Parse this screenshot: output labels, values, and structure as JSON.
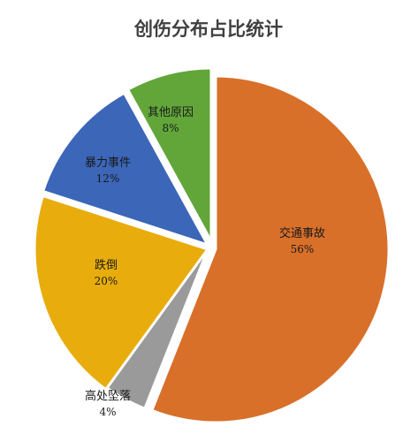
{
  "chart_data": {
    "type": "pie",
    "title": "创伤分布占比统计",
    "slices": [
      {
        "name": "交通事故",
        "value": 56,
        "label": "56%",
        "color": "#d8702a"
      },
      {
        "name": "高处坠落",
        "value": 4,
        "label": "4%",
        "color": "#9a9a9a"
      },
      {
        "name": "跌倒",
        "value": 20,
        "label": "20%",
        "color": "#e8ad0c"
      },
      {
        "name": "暴力事件",
        "value": 12,
        "label": "12%",
        "color": "#3c66b8"
      },
      {
        "name": "其他原因",
        "value": 8,
        "label": "8%",
        "color": "#62a63a"
      }
    ]
  }
}
